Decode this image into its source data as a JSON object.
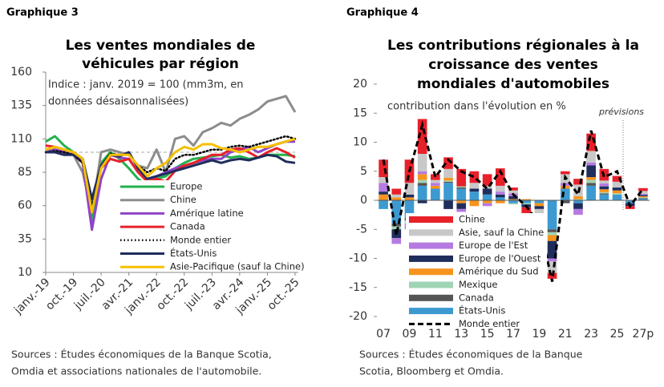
{
  "chart_data": [
    {
      "type": "line",
      "figure_label": "Graphique 3",
      "title": [
        "Les ventes mondiales de",
        "véhicules par région"
      ],
      "subtitle": [
        "Indice : janv. 2019 = 100 (mm3m, en",
        "données désaisonnalisées)"
      ],
      "source": [
        "Sources : Études économiques de la Banque Scotia,",
        "Omdia et associations nationales de l'automobile."
      ],
      "categories": [
        "janv.-19",
        null,
        null,
        "oct.-19",
        null,
        null,
        "juil.-20",
        null,
        null,
        "avr.-21",
        null,
        null,
        "janv.-22",
        null,
        null,
        "oct.-22",
        null,
        null,
        "juil.-23",
        null,
        null,
        "avr.-24",
        null,
        null,
        "janv.-25",
        null,
        null,
        "oct.-25"
      ],
      "ylim": [
        10,
        160
      ],
      "yticks": [
        10,
        35,
        60,
        85,
        110,
        135,
        160
      ],
      "reference_line": 100,
      "series": [
        {
          "name": "Europe",
          "color": "#22b14c",
          "values": [
            108,
            112,
            105,
            100,
            95,
            48,
            92,
            100,
            95,
            88,
            80,
            75,
            80,
            82,
            88,
            92,
            95,
            96,
            97,
            98,
            96,
            97,
            95,
            96,
            98,
            98,
            98,
            97
          ]
        },
        {
          "name": "Chine",
          "color": "#8c8c8c",
          "values": [
            100,
            102,
            100,
            98,
            85,
            55,
            100,
            102,
            100,
            98,
            90,
            88,
            102,
            85,
            110,
            112,
            105,
            115,
            118,
            122,
            120,
            125,
            128,
            132,
            138,
            140,
            142,
            130
          ]
        },
        {
          "name": "Amérique latine",
          "color": "#8e44c8",
          "values": [
            100,
            102,
            100,
            98,
            92,
            42,
            80,
            98,
            96,
            95,
            85,
            80,
            82,
            85,
            88,
            90,
            92,
            94,
            95,
            95,
            100,
            102,
            104,
            100,
            103,
            106,
            108,
            108
          ]
        },
        {
          "name": "Canada",
          "color": "#e8202a",
          "values": [
            105,
            104,
            102,
            100,
            95,
            55,
            88,
            95,
            93,
            95,
            85,
            78,
            80,
            78,
            86,
            90,
            92,
            95,
            98,
            98,
            102,
            103,
            100,
            96,
            100,
            103,
            100,
            96
          ]
        },
        {
          "name": "Monde entier",
          "color": "#000000",
          "dash": "dotted",
          "values": [
            100,
            101,
            100,
            98,
            92,
            60,
            90,
            99,
            98,
            98,
            90,
            85,
            88,
            86,
            95,
            98,
            98,
            100,
            102,
            102,
            104,
            105,
            104,
            106,
            108,
            110,
            112,
            110
          ]
        },
        {
          "name": "États-Unis",
          "color": "#1f2d5c",
          "values": [
            100,
            100,
            98,
            98,
            95,
            65,
            90,
            98,
            97,
            100,
            88,
            80,
            82,
            84,
            86,
            88,
            90,
            92,
            94,
            92,
            94,
            95,
            94,
            96,
            98,
            97,
            93,
            92
          ]
        },
        {
          "name": "Asie-Pacifique (sauf la Chine)",
          "color": "#f5c000",
          "values": [
            102,
            104,
            102,
            100,
            95,
            55,
            88,
            98,
            98,
            98,
            90,
            82,
            88,
            92,
            100,
            104,
            102,
            106,
            106,
            103,
            102,
            100,
            102,
            104,
            104,
            106,
            108,
            110
          ]
        }
      ]
    },
    {
      "type": "bar",
      "stacked": true,
      "figure_label": "Graphique 4",
      "title": [
        "Les contributions régionales à la",
        "croissance des ventes",
        "mondiales d'automobiles"
      ],
      "subtitle": [
        "contribution dans l'évolution en %"
      ],
      "source": [
        "Sources : Études économiques de la Banque",
        "Scotia, Bloomberg et Omdia."
      ],
      "annotation": "prévisions",
      "categories": [
        "07",
        null,
        "09",
        null,
        "11",
        null,
        "13",
        null,
        "15",
        null,
        "17",
        null,
        "19",
        null,
        "21",
        null,
        "23",
        null,
        "25",
        null,
        "27p"
      ],
      "ylim": [
        -20,
        20
      ],
      "yticks": [
        20,
        15,
        10,
        5,
        0,
        -5,
        -10,
        -15,
        -20
      ],
      "series": [
        {
          "name": "Chine",
          "color": "#e8202a",
          "values": [
            3,
            1,
            4,
            6,
            1,
            2,
            3,
            2,
            2,
            3,
            0.5,
            -1.5,
            -2,
            -1,
            0.5,
            1,
            3,
            2,
            1,
            -0.5,
            0.5
          ]
        },
        {
          "name": "Asie, sauf la Chine",
          "color": "#c8c8c8",
          "values": [
            1,
            0.5,
            2,
            3,
            0.5,
            1.5,
            0,
            1,
            0.5,
            1,
            0.5,
            0,
            -1,
            -2,
            1.5,
            2,
            2,
            0.5,
            1,
            0,
            0.5
          ]
        },
        {
          "name": "Europe de l'Est",
          "color": "#b57be0",
          "values": [
            1.5,
            -1,
            -1,
            0.5,
            0.5,
            0,
            -0.5,
            0,
            -0.5,
            0.5,
            0.5,
            0,
            0,
            -0.5,
            0.5,
            -1,
            0.5,
            0.5,
            0,
            0,
            0.2
          ]
        },
        {
          "name": "Europe de l'Ouest",
          "color": "#1f2d5c",
          "values": [
            0.5,
            -1.5,
            0.5,
            -0.5,
            0,
            -1.5,
            -1,
            0.5,
            1,
            0.5,
            0.5,
            -0.5,
            -0.5,
            -3,
            0,
            -1,
            2,
            0.5,
            0.5,
            -0.5,
            0.2
          ]
        },
        {
          "name": "Amérique du Sud",
          "color": "#f7941d",
          "values": [
            1,
            0.5,
            0.5,
            1,
            0.5,
            0.5,
            -0.5,
            -1,
            -0.5,
            -0.5,
            0.2,
            0.2,
            -0.5,
            -1,
            0.5,
            0.5,
            0.5,
            0.5,
            0.5,
            0,
            0.2
          ]
        },
        {
          "name": "Mexique",
          "color": "#9fd4b4",
          "values": [
            0,
            -0.5,
            -0.5,
            0.5,
            0,
            0.2,
            0.2,
            0,
            0,
            0,
            -0.2,
            -0.2,
            0,
            -0.5,
            0,
            0.2,
            0.5,
            0.2,
            0.2,
            0,
            0.1
          ]
        },
        {
          "name": "Canada",
          "color": "#555555",
          "values": [
            0,
            -0.5,
            -0.5,
            0.5,
            0,
            0.2,
            0.2,
            0,
            0,
            0,
            0,
            0,
            0,
            -0.5,
            -0.5,
            0,
            0.5,
            0.2,
            0,
            0,
            0.1
          ]
        },
        {
          "name": "États-Unis",
          "color": "#3d9ad1",
          "values": [
            -1.5,
            -4,
            -3,
            2.5,
            2,
            3,
            2,
            1.5,
            1,
            0.5,
            -0.5,
            -0.5,
            -0.5,
            -5,
            2,
            -0.5,
            2.5,
            1,
            1,
            -0.5,
            0.3
          ]
        },
        {
          "name": "Monde entier",
          "type": "line",
          "color": "#000000",
          "dash": "dashed",
          "values": [
            7,
            -6,
            5,
            13,
            4,
            7,
            5,
            4,
            2,
            5,
            1,
            -1,
            -4,
            -14,
            4,
            1,
            12,
            4,
            5,
            -1,
            2
          ]
        }
      ]
    }
  ]
}
